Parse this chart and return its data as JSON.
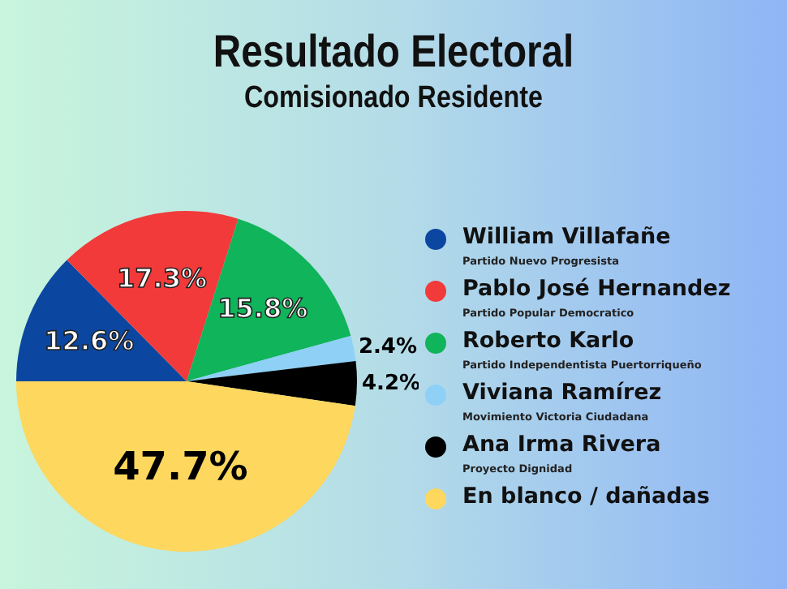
{
  "chart_data": {
    "type": "pie",
    "title": "Resultado Electoral",
    "subtitle": "Comisionado Residente",
    "categories": [
      "William Villafañe",
      "Pablo José Hernandez",
      "Roberto Karlo",
      "Viviana Ramírez",
      "Ana Irma Rivera",
      "En blanco / dañadas"
    ],
    "values": [
      12.6,
      17.3,
      15.8,
      2.4,
      4.2,
      47.7
    ],
    "value_labels": [
      "12.6%",
      "17.3%",
      "15.8%",
      "2.4%",
      "4.2%",
      "47.7%"
    ],
    "colors": [
      "#0b47a1",
      "#f23a3a",
      "#10b45a",
      "#8ed0f6",
      "#000000",
      "#fdd75e"
    ],
    "annotations": [
      "Partido Nuevo Progresista",
      "Partido Popular Democratico",
      "Partido Independentista Puertorriqueño",
      "Movimiento Victoria Ciudadana",
      "Proyecto Dignidad"
    ],
    "legend": "right"
  }
}
